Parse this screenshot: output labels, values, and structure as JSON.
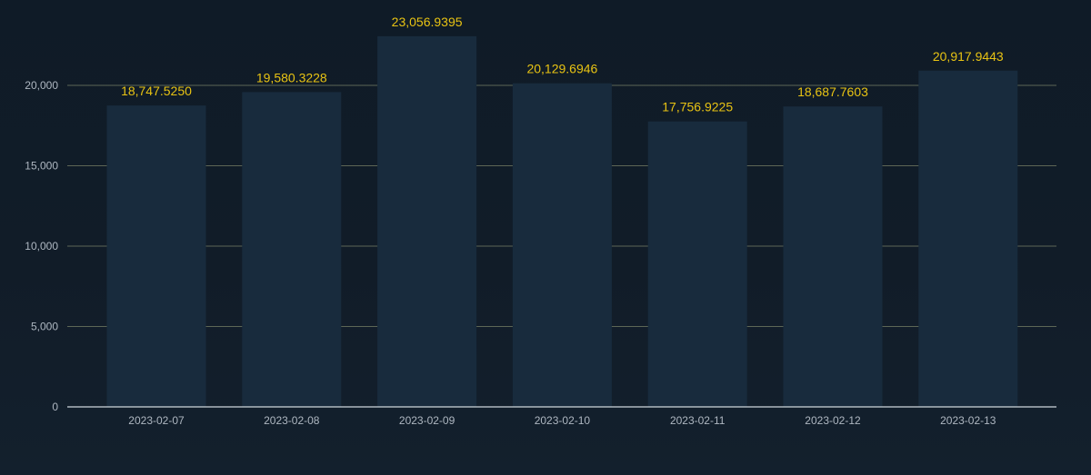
{
  "chart_data": {
    "type": "bar",
    "categories": [
      "2023-02-07",
      "2023-02-08",
      "2023-02-09",
      "2023-02-10",
      "2023-02-11",
      "2023-02-12",
      "2023-02-13"
    ],
    "values": [
      18747.525,
      19580.3228,
      23056.9395,
      20129.6946,
      17756.9225,
      18687.7603,
      20917.9443
    ],
    "data_labels": [
      "18,747.5250",
      "19,580.3228",
      "23,056.9395",
      "20,129.6946",
      "17,756.9225",
      "18,687.7603",
      "20,917.9443"
    ],
    "y_ticks": [
      0,
      5000,
      10000,
      15000,
      20000
    ],
    "y_tick_labels": [
      "0",
      "5,000",
      "10,000",
      "15,000",
      "20,000"
    ],
    "ylim": [
      0,
      20000
    ],
    "grid": true,
    "legend": "none",
    "title": "",
    "xlabel": "",
    "ylabel": "",
    "colors": {
      "bar": "#182b3d",
      "data_label": "#e8c313",
      "tick_label": "#aeb7c1",
      "grid": "#5d6656",
      "baseline": "#cfd6dc"
    }
  }
}
